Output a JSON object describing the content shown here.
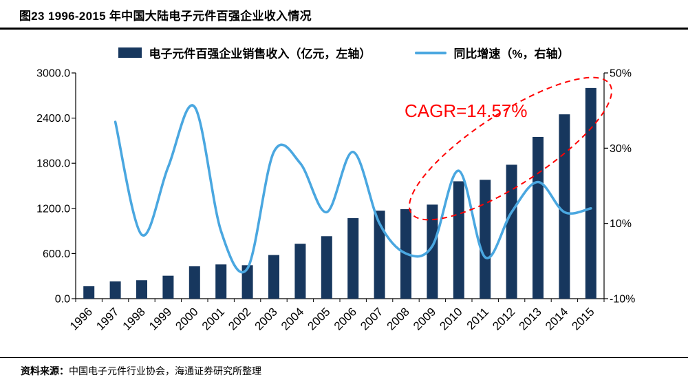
{
  "header": {
    "title": "图23 1996-2015 年中国大陆电子元件百强企业收入情况"
  },
  "legend": {
    "bar_label": "电子元件百强企业销售收入（亿元，左轴）",
    "line_label": "同比增速（%，右轴）"
  },
  "annotation": {
    "cagr_label": "CAGR=14.57%"
  },
  "footer": {
    "prefix": "资料来源：",
    "text": "中国电子元件行业协会，海通证券研究所整理"
  },
  "colors": {
    "bar": "#17375E",
    "line": "#4AA7E0",
    "annotation": "#FF0000",
    "axis": "#000000"
  },
  "chart_data": {
    "type": "bar+line",
    "title": "图23 1996-2015 年中国大陆电子元件百强企业收入情况",
    "grid": false,
    "legend_position": "top",
    "annotation": "CAGR=14.57%",
    "categories": [
      "1996",
      "1997",
      "1998",
      "1999",
      "2000",
      "2001",
      "2002",
      "2003",
      "2004",
      "2005",
      "2006",
      "2007",
      "2008",
      "2009",
      "2010",
      "2011",
      "2012",
      "2013",
      "2014",
      "2015"
    ],
    "series": [
      {
        "name": "电子元件百强企业销售收入（亿元，左轴）",
        "type": "bar",
        "axis": "left",
        "values": [
          165,
          230,
          245,
          305,
          430,
          455,
          445,
          580,
          730,
          830,
          1070,
          1170,
          1190,
          1250,
          1560,
          1580,
          1780,
          2150,
          2450,
          2800
        ]
      },
      {
        "name": "同比增速（%，右轴）",
        "type": "line",
        "axis": "right",
        "values": [
          null,
          37,
          7,
          25,
          41,
          8,
          -2,
          29,
          26,
          13,
          29,
          10,
          2,
          4,
          24,
          1,
          13,
          21,
          13,
          14
        ]
      }
    ],
    "left_axis": {
      "min": 0,
      "max": 3000,
      "ticks": [
        {
          "value": 0,
          "label": "0.0"
        },
        {
          "value": 600,
          "label": "600.0"
        },
        {
          "value": 1200,
          "label": "1200.0"
        },
        {
          "value": 1800,
          "label": "1800.0"
        },
        {
          "value": 2400,
          "label": "2400.0"
        },
        {
          "value": 3000,
          "label": "3000.0"
        }
      ]
    },
    "right_axis": {
      "min": -10,
      "max": 50,
      "ticks": [
        {
          "value": -10,
          "label": "-10%"
        },
        {
          "value": 10,
          "label": "10%"
        },
        {
          "value": 30,
          "label": "30%"
        },
        {
          "value": 50,
          "label": "50%"
        }
      ]
    }
  }
}
